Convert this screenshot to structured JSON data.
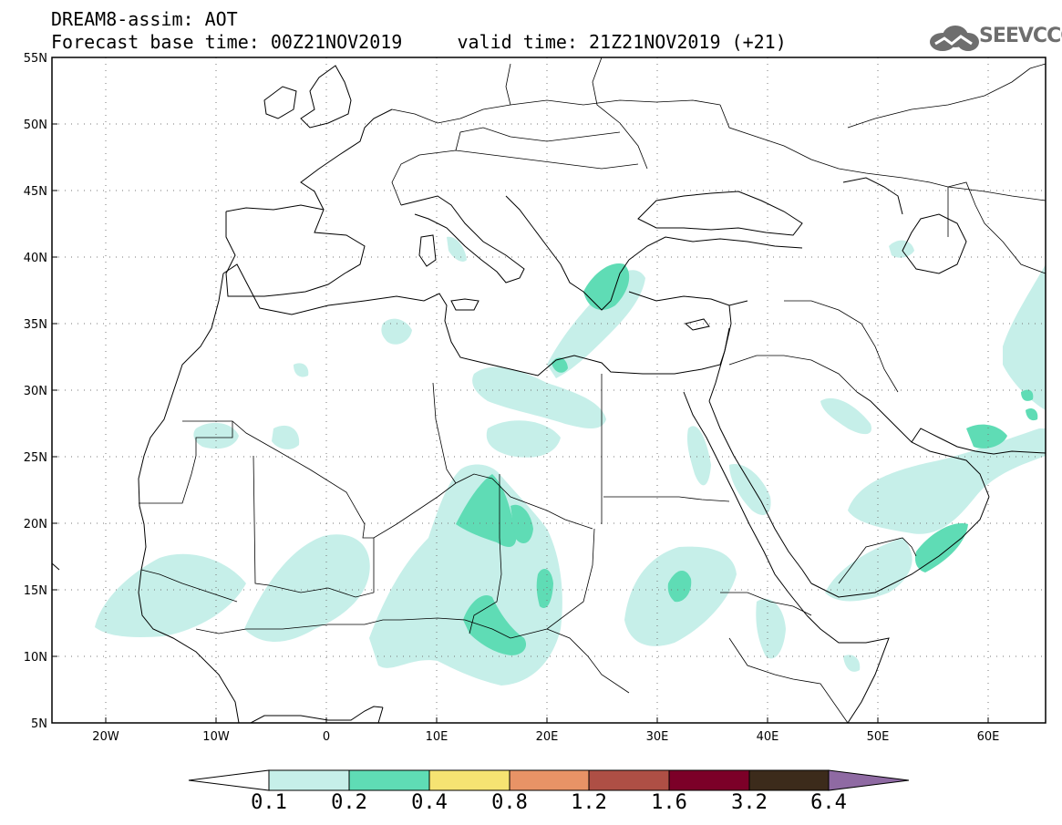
{
  "header": {
    "line1": "DREAM8-assim: AOT",
    "line2": "Forecast base time: 00Z21NOV2019     valid time: 21Z21NOV2019 (+21)",
    "logo_text": "SEEVCCC"
  },
  "map": {
    "lon_range": [
      -25,
      65
    ],
    "lat_range": [
      5,
      55
    ],
    "lat_labels": [
      "5N",
      "10N",
      "15N",
      "20N",
      "25N",
      "30N",
      "35N",
      "40N",
      "45N",
      "50N",
      "55N"
    ],
    "lon_labels": [
      "20W",
      "10W",
      "0",
      "10E",
      "20E",
      "30E",
      "40E",
      "50E",
      "60E"
    ],
    "grid": "dotted",
    "field_colors": {
      "aot_0_1": "#c6efe9",
      "aot_0_2": "#5fdcb5"
    }
  },
  "colorbar": {
    "labels": [
      "0.1",
      "0.2",
      "0.4",
      "0.8",
      "1.2",
      "1.6",
      "3.2",
      "6.4"
    ],
    "colors": [
      "#ffffff",
      "#c6efe9",
      "#5fdcb5",
      "#f6e372",
      "#e89366",
      "#ae4f45",
      "#7c0028",
      "#3c2b1b",
      "#8f6aa3"
    ]
  }
}
